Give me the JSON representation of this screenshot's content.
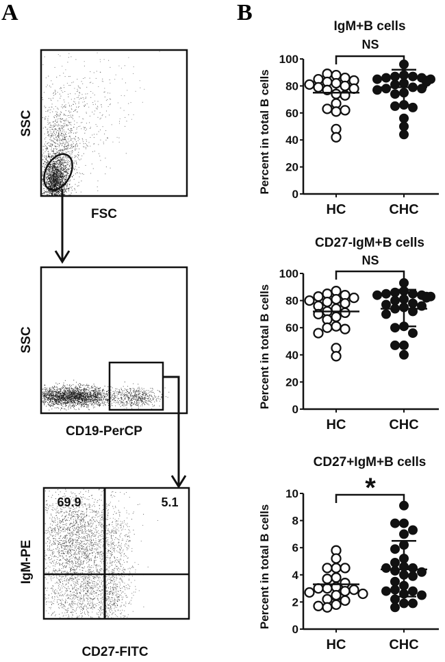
{
  "figure": {
    "panel_a_label": "A",
    "panel_b_label": "B"
  },
  "flow_plots": [
    {
      "id": "fsc-ssc",
      "x_label": "FSC",
      "y_label": "SSC",
      "gate": "lymphocyte gate (ellipse)"
    },
    {
      "id": "cd19-ssc",
      "x_label": "CD19-PerCP",
      "y_label": "SSC",
      "gate": "CD19+ gate (rectangle)"
    },
    {
      "id": "cd27-igm",
      "x_label": "CD27-FITC",
      "y_label": "IgM-PE",
      "quadrant_upper_left": "69.9",
      "quadrant_upper_right": "5.1"
    }
  ],
  "chart_data": [
    {
      "type": "scatter",
      "title": "IgM+B cells",
      "significance": "NS",
      "xlabel": "",
      "ylabel": "Percent in total B cells",
      "categories": [
        "HC",
        "CHC"
      ],
      "ylim": [
        0,
        100
      ],
      "yticks": [
        "0",
        "20",
        "40",
        "60",
        "80",
        "100"
      ],
      "grid": false,
      "series": [
        {
          "name": "HC",
          "marker": "open-circle",
          "values": [
            88,
            89,
            86,
            85,
            84,
            83,
            82,
            81,
            80,
            79,
            78,
            77,
            74,
            73,
            67,
            63,
            62,
            61,
            48,
            42
          ],
          "mean": 75,
          "sd_upper": 87,
          "sd_lower": 62
        },
        {
          "name": "CHC",
          "marker": "filled-circle",
          "values": [
            96,
            88,
            87,
            87,
            86,
            86,
            85,
            85,
            84,
            83,
            82,
            81,
            79,
            78,
            78,
            77,
            75,
            74,
            66,
            65,
            64,
            56,
            50,
            44
          ],
          "mean": 79,
          "sd_upper": 92,
          "sd_lower": 66
        }
      ]
    },
    {
      "type": "scatter",
      "title": "CD27-IgM+B cells",
      "significance": "NS",
      "xlabel": "",
      "ylabel": "Percent in total B cells",
      "categories": [
        "HC",
        "CHC"
      ],
      "ylim": [
        0,
        100
      ],
      "yticks": [
        "0",
        "20",
        "40",
        "60",
        "80",
        "100"
      ],
      "grid": false,
      "series": [
        {
          "name": "HC",
          "marker": "open-circle",
          "values": [
            87,
            85,
            84,
            83,
            82,
            81,
            80,
            79,
            78,
            76,
            74,
            72,
            71,
            70,
            68,
            66,
            61,
            60,
            59,
            56,
            45,
            39
          ],
          "mean": 72,
          "sd_upper": 85,
          "sd_lower": 59
        },
        {
          "name": "CHC",
          "marker": "filled-circle",
          "values": [
            93,
            87,
            86,
            85,
            85,
            84,
            84,
            83,
            83,
            82,
            81,
            80,
            78,
            77,
            76,
            75,
            74,
            72,
            70,
            61,
            60,
            56,
            47,
            47,
            40
          ],
          "mean": 74,
          "sd_upper": 88,
          "sd_lower": 61
        }
      ]
    },
    {
      "type": "scatter",
      "title": "CD27+IgM+B cells",
      "significance": "*",
      "xlabel": "",
      "ylabel": "Percent in total B cells",
      "categories": [
        "HC",
        "CHC"
      ],
      "ylim": [
        0,
        10
      ],
      "yticks": [
        "0",
        "2",
        "4",
        "6",
        "8",
        "10"
      ],
      "grid": false,
      "series": [
        {
          "name": "HC",
          "marker": "open-circle",
          "values": [
            5.8,
            5.2,
            4.5,
            4.5,
            4.5,
            3.8,
            3.7,
            3.4,
            3.1,
            3.0,
            3.0,
            2.9,
            2.8,
            2.7,
            2.6,
            2.5,
            2.2,
            2.1,
            1.8,
            1.7,
            1.6
          ],
          "mean": 3.3,
          "sd_upper": 4.4,
          "sd_lower": 2.2
        },
        {
          "name": "CHC",
          "marker": "filled-circle",
          "values": [
            9.1,
            7.8,
            7.8,
            7.3,
            7.0,
            6.2,
            5.9,
            5.2,
            4.9,
            4.6,
            4.5,
            4.5,
            4.3,
            4.2,
            4.0,
            3.9,
            3.5,
            3.2,
            2.9,
            2.8,
            2.8,
            2.6,
            2.5,
            2.2,
            1.9,
            1.9,
            1.6
          ],
          "mean": 4.4,
          "sd_upper": 6.5,
          "sd_lower": 2.4
        }
      ]
    }
  ]
}
